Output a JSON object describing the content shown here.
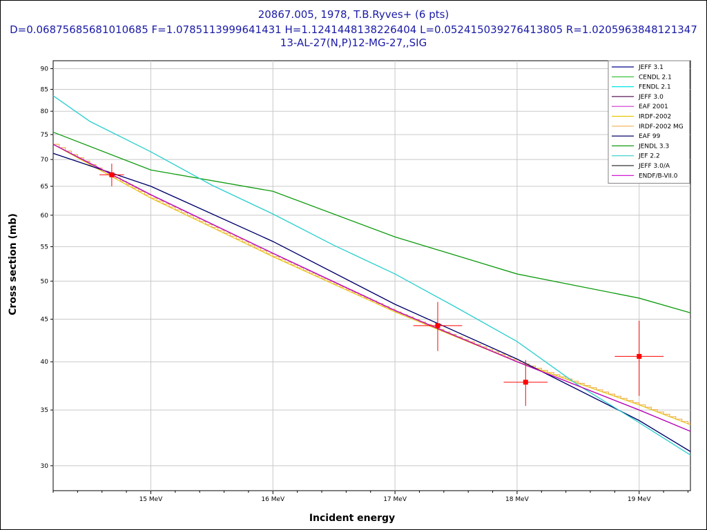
{
  "chart_data": {
    "type": "line",
    "title": "20867.005, 1978, T.B.Ryves+ (6 pts)",
    "subtitle": "D=0.06875685681010685 F=1.0785113999641431 H=1.1241448138226404 L=0.052415039276413805 R=1.0205963848121347",
    "reaction": "13-AL-27(N,P)12-MG-27,,SIG",
    "xlabel": "Incident energy",
    "ylabel": "Cross section (mb)",
    "x_unit": "MeV",
    "y_unit": "mb",
    "xlim": [
      14.2,
      19.42
    ],
    "ylim": [
      28.0,
      92.0
    ],
    "y_scale": "log",
    "grid": true,
    "legend_position": "top-right",
    "x_ticks": [
      {
        "value": 15,
        "label": "15 MeV"
      },
      {
        "value": 16,
        "label": "16 MeV"
      },
      {
        "value": 17,
        "label": "17 MeV"
      },
      {
        "value": 18,
        "label": "18 MeV"
      },
      {
        "value": 19,
        "label": "19 MeV"
      }
    ],
    "x_minor_ticks": [
      14.2,
      14.4,
      14.6,
      14.8,
      15.2,
      15.4,
      15.6,
      15.8,
      16.2,
      16.4,
      16.6,
      16.8,
      17.2,
      17.4,
      17.6,
      17.8,
      18.2,
      18.4,
      18.6,
      18.8,
      19.2,
      19.4
    ],
    "y_ticks": [
      30,
      35,
      40,
      45,
      50,
      55,
      60,
      65,
      70,
      75,
      80,
      85,
      90
    ],
    "series": [
      {
        "name": "JEFF 3.1",
        "color": "#00008b",
        "x": [
          14.2,
          15.0,
          16.0,
          17.0,
          18.0,
          19.0,
          19.42
        ],
        "y": [
          71.2,
          65.0,
          55.8,
          46.9,
          40.3,
          34.0,
          31.2
        ]
      },
      {
        "name": "CENDL 2.1",
        "color": "#22bb22",
        "x": [
          14.2,
          15.0,
          16.0,
          17.0,
          18.0,
          19.0,
          19.42
        ],
        "y": [
          75.5,
          68.0,
          64.1,
          56.5,
          51.0,
          47.7,
          45.8
        ]
      },
      {
        "name": "FENDL 2.1",
        "color": "#00e5e5",
        "x": [
          14.2,
          14.5,
          15.0,
          15.5,
          16.0,
          16.5,
          17.0,
          17.5,
          18.0,
          18.5,
          19.0,
          19.42
        ],
        "y": [
          83.5,
          77.8,
          71.5,
          65.2,
          60.2,
          55.2,
          51.0,
          46.5,
          42.3,
          37.5,
          33.8,
          30.9
        ]
      },
      {
        "name": "JEFF 3.0",
        "color": "#5a1a5a",
        "x": [
          14.2,
          15.0,
          16.0,
          17.0,
          18.0,
          19.0,
          19.42
        ],
        "y": [
          73.0,
          63.5,
          54.0,
          46.1,
          40.0,
          35.0,
          33.0
        ]
      },
      {
        "name": "EAF 2001",
        "color": "#cc33cc",
        "x": [
          14.2,
          15.0,
          16.0,
          17.0,
          18.0,
          19.0,
          19.42
        ],
        "y": [
          73.0,
          63.5,
          54.0,
          46.1,
          40.0,
          35.0,
          33.0
        ]
      },
      {
        "name": "IRDF-2002",
        "color": "#e6c800",
        "x": [
          14.2,
          15.0,
          16.0,
          17.0,
          18.0,
          19.0,
          19.42
        ],
        "y": [
          73.0,
          62.9,
          53.5,
          45.9,
          40.0,
          35.5,
          33.6
        ]
      },
      {
        "name": "IRDF-2002 MG",
        "color": "#f0b050",
        "step": true,
        "x": [
          14.2,
          15.0,
          16.0,
          17.0,
          18.0,
          19.0,
          19.42
        ],
        "y": [
          73.0,
          62.9,
          53.5,
          45.9,
          40.0,
          35.5,
          33.6
        ]
      },
      {
        "name": "EAF 99",
        "color": "#000066",
        "x": [
          14.2,
          15.0,
          16.0,
          17.0,
          18.0,
          19.0,
          19.42
        ],
        "y": [
          71.2,
          65.0,
          55.8,
          46.9,
          40.3,
          34.0,
          31.2
        ]
      },
      {
        "name": "JENDL 3.3",
        "color": "#119911",
        "x": [
          14.2,
          15.0,
          16.0,
          17.0,
          18.0,
          19.0,
          19.42
        ],
        "y": [
          75.5,
          68.0,
          64.1,
          56.5,
          51.0,
          47.7,
          45.8
        ]
      },
      {
        "name": "JEF 2.2",
        "color": "#33cccc",
        "x": [
          14.2,
          14.5,
          15.0,
          15.5,
          16.0,
          16.5,
          17.0,
          17.5,
          18.0,
          18.5,
          19.0,
          19.42
        ],
        "y": [
          83.5,
          77.8,
          71.5,
          65.2,
          60.2,
          55.2,
          51.0,
          46.5,
          42.3,
          37.5,
          33.8,
          30.9
        ]
      },
      {
        "name": "JEFF 3.0/A",
        "color": "#333333",
        "x": [
          14.2,
          15.0,
          16.0,
          17.0,
          18.0,
          19.0,
          19.42
        ],
        "y": [
          73.0,
          63.5,
          54.0,
          46.1,
          40.0,
          35.0,
          33.0
        ]
      },
      {
        "name": "ENDF/B-VII.0",
        "color": "#cc00cc",
        "x": [
          14.2,
          15.0,
          16.0,
          17.0,
          18.0,
          19.0,
          19.42
        ],
        "y": [
          73.0,
          63.5,
          54.0,
          46.1,
          40.0,
          35.0,
          33.0
        ]
      }
    ],
    "experimental": {
      "color": "#ff0000",
      "points": [
        {
          "x": 14.68,
          "y": 67.1,
          "xerr": 0.1,
          "yerr": 2.1
        },
        {
          "x": 17.35,
          "y": 44.2,
          "xerr": 0.2,
          "yerr": 3.0
        },
        {
          "x": 18.07,
          "y": 37.8,
          "xerr": 0.18,
          "yerr": 2.4
        },
        {
          "x": 19.0,
          "y": 40.6,
          "xerr": 0.2,
          "yerr": 4.2
        }
      ]
    }
  }
}
